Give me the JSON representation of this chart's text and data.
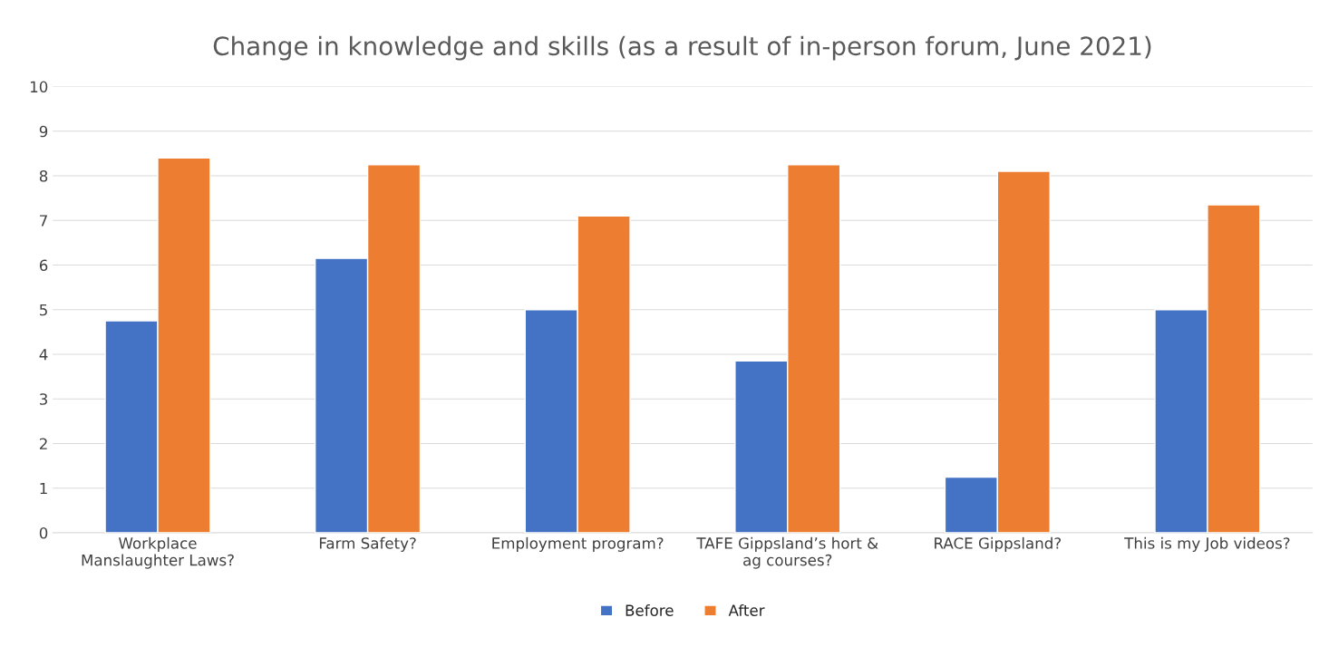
{
  "chart_data": {
    "type": "bar",
    "title": "Change in knowledge and skills (as a result of in-person forum, June 2021)",
    "categories": [
      "Workplace\nManslaughter Laws?",
      "Farm Safety?",
      "Employment program?",
      "TAFE Gippsland’s hort &\nag courses?",
      "RACE Gippsland?",
      "This is my Job videos?"
    ],
    "series": [
      {
        "name": "Before",
        "color": "#4472c4",
        "values": [
          4.75,
          6.15,
          5.0,
          3.85,
          1.25,
          5.0
        ]
      },
      {
        "name": "After",
        "color": "#ed7d31",
        "values": [
          8.4,
          8.25,
          7.1,
          8.25,
          8.1,
          7.35
        ]
      }
    ],
    "ylim": [
      0,
      10
    ],
    "yticks": [
      0,
      1,
      2,
      3,
      4,
      5,
      6,
      7,
      8,
      9,
      10
    ],
    "grid": "y",
    "legend": "bottom"
  }
}
